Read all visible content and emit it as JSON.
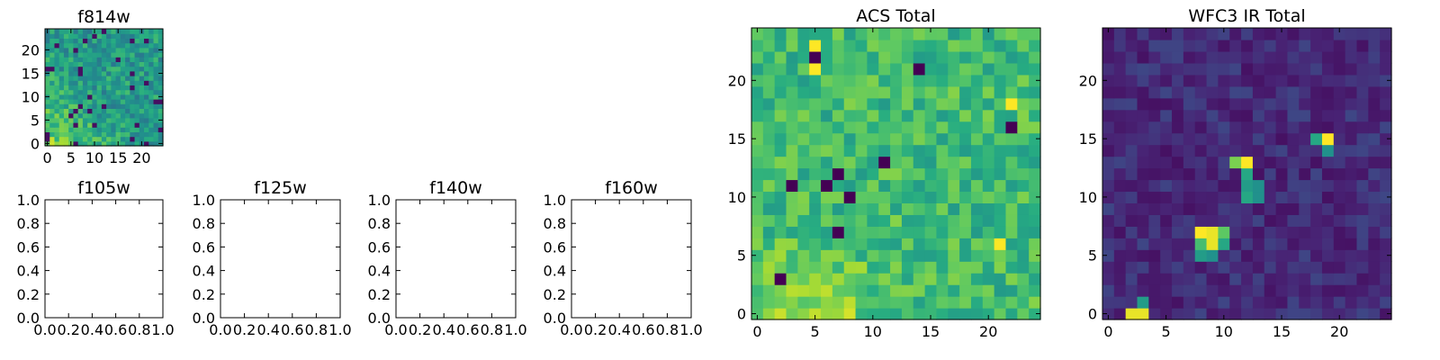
{
  "chart_data": [
    {
      "type": "heatmap",
      "title": "f814w",
      "xlim": [
        -0.5,
        24.5
      ],
      "ylim": [
        -0.5,
        24.5
      ],
      "xticks": [
        "0",
        "5",
        "10",
        "15",
        "20"
      ],
      "yticks": [
        "0",
        "5",
        "10",
        "15",
        "20"
      ],
      "colormap": "viridis",
      "grid": "25x25 pixel image, pseudo-random noise with brighter lower-left region"
    },
    {
      "type": "heatmap",
      "title": "f105w",
      "empty": true,
      "xlim": [
        0.0,
        1.0
      ],
      "ylim": [
        0.0,
        1.0
      ],
      "xticks": [
        "0.0",
        "0.2",
        "0.4",
        "0.6",
        "0.8",
        "1.0"
      ],
      "yticks": [
        "0.0",
        "0.2",
        "0.4",
        "0.6",
        "0.8",
        "1.0"
      ]
    },
    {
      "type": "heatmap",
      "title": "f125w",
      "empty": true,
      "xlim": [
        0.0,
        1.0
      ],
      "ylim": [
        0.0,
        1.0
      ],
      "xticks": [
        "0.0",
        "0.2",
        "0.4",
        "0.6",
        "0.8",
        "1.0"
      ],
      "yticks": [
        "0.0",
        "0.2",
        "0.4",
        "0.6",
        "0.8",
        "1.0"
      ]
    },
    {
      "type": "heatmap",
      "title": "f140w",
      "empty": true,
      "xlim": [
        0.0,
        1.0
      ],
      "ylim": [
        0.0,
        1.0
      ],
      "xticks": [
        "0.0",
        "0.2",
        "0.4",
        "0.6",
        "0.8",
        "1.0"
      ],
      "yticks": [
        "0.0",
        "0.2",
        "0.4",
        "0.6",
        "0.8",
        "1.0"
      ]
    },
    {
      "type": "heatmap",
      "title": "f160w",
      "empty": true,
      "xlim": [
        0.0,
        1.0
      ],
      "ylim": [
        0.0,
        1.0
      ],
      "xticks": [
        "0.0",
        "0.2",
        "0.4",
        "0.6",
        "0.8",
        "1.0"
      ],
      "yticks": [
        "0.0",
        "0.2",
        "0.4",
        "0.6",
        "0.8",
        "1.0"
      ]
    },
    {
      "type": "heatmap",
      "title": "ACS Total",
      "xlim": [
        -0.5,
        24.5
      ],
      "ylim": [
        -0.5,
        24.5
      ],
      "xticks": [
        "0",
        "5",
        "10",
        "15",
        "20"
      ],
      "yticks": [
        "0",
        "5",
        "10",
        "15",
        "20"
      ],
      "colormap": "viridis",
      "dark_pixels": [
        [
          5,
          22
        ],
        [
          14,
          21
        ],
        [
          22,
          16
        ],
        [
          11,
          13
        ],
        [
          7,
          12
        ],
        [
          3,
          11
        ],
        [
          6,
          11
        ],
        [
          8,
          10
        ],
        [
          7,
          7
        ],
        [
          2,
          3
        ]
      ],
      "bright_pixels": [
        [
          5,
          23
        ],
        [
          5,
          21
        ],
        [
          22,
          18
        ],
        [
          21,
          6
        ]
      ]
    },
    {
      "type": "heatmap",
      "title": "WFC3 IR Total",
      "xlim": [
        -0.5,
        24.5
      ],
      "ylim": [
        -0.5,
        24.5
      ],
      "xticks": [
        "0",
        "5",
        "10",
        "15",
        "20"
      ],
      "yticks": [
        "0",
        "5",
        "10",
        "15",
        "20"
      ],
      "colormap": "viridis",
      "sources": [
        {
          "x": 2,
          "y": 0,
          "level": 0.97
        },
        {
          "x": 3,
          "y": 0,
          "level": 0.97
        },
        {
          "x": 3,
          "y": 1,
          "level": 0.55
        },
        {
          "x": 8,
          "y": 7,
          "level": 1.0
        },
        {
          "x": 9,
          "y": 7,
          "level": 0.97
        },
        {
          "x": 9,
          "y": 6,
          "level": 0.97
        },
        {
          "x": 8,
          "y": 6,
          "level": 0.7
        },
        {
          "x": 10,
          "y": 7,
          "level": 0.75
        },
        {
          "x": 10,
          "y": 6,
          "level": 0.6
        },
        {
          "x": 8,
          "y": 5,
          "level": 0.55
        },
        {
          "x": 9,
          "y": 5,
          "level": 0.5
        },
        {
          "x": 11,
          "y": 13,
          "level": 0.8
        },
        {
          "x": 12,
          "y": 13,
          "level": 1.0
        },
        {
          "x": 12,
          "y": 12,
          "level": 0.6
        },
        {
          "x": 12,
          "y": 11,
          "level": 0.55
        },
        {
          "x": 13,
          "y": 11,
          "level": 0.5
        },
        {
          "x": 12,
          "y": 10,
          "level": 0.6
        },
        {
          "x": 13,
          "y": 10,
          "level": 0.5
        },
        {
          "x": 18,
          "y": 15,
          "level": 0.6
        },
        {
          "x": 19,
          "y": 15,
          "level": 1.0
        },
        {
          "x": 19,
          "y": 14,
          "level": 0.5
        }
      ]
    }
  ]
}
